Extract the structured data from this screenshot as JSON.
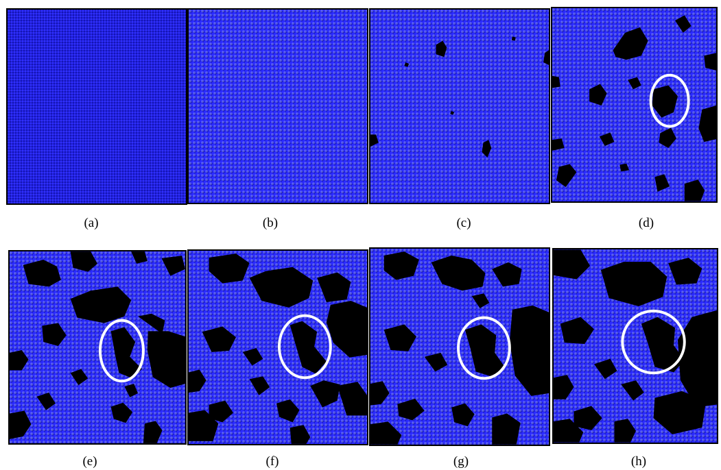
{
  "figure": {
    "panels": [
      {
        "id": "a",
        "caption": "(a)"
      },
      {
        "id": "b",
        "caption": "(b)"
      },
      {
        "id": "c",
        "caption": "(c)"
      },
      {
        "id": "d",
        "caption": "(d)"
      },
      {
        "id": "e",
        "caption": "(e)"
      },
      {
        "id": "f",
        "caption": "(f)"
      },
      {
        "id": "g",
        "caption": "(g)"
      },
      {
        "id": "h",
        "caption": "(h)"
      }
    ],
    "colors": {
      "particle": "#1f1fe8",
      "void": "#000000",
      "highlight_ring": "#ffffff"
    }
  }
}
